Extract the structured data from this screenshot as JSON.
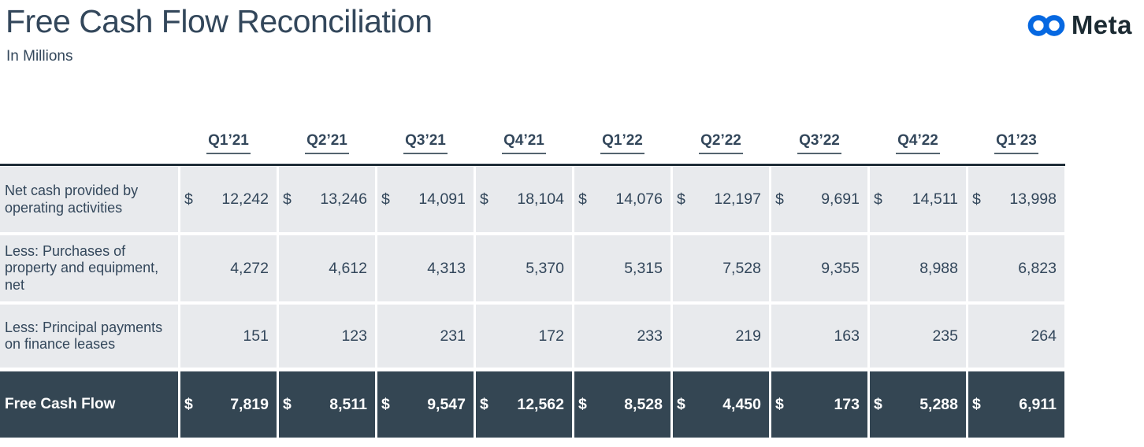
{
  "slide": {
    "title": "Free Cash Flow Reconciliation",
    "subtitle": "In Millions"
  },
  "logo": {
    "brand": "Meta",
    "icon": "meta-infinity-icon"
  },
  "colors": {
    "title_text": "#33475b",
    "table_text": "#33475b",
    "light_row_bg": "#e8eaed",
    "dark_row_bg": "#344653",
    "dark_row_text": "#ffffff",
    "top_rule": "#1f2d38",
    "header_underline": "#54646f",
    "logo_blue": "#0668E1",
    "logo_wordmark": "#1c2b33"
  },
  "chart_data": {
    "type": "table",
    "title": "Free Cash Flow Reconciliation",
    "units": "In Millions",
    "columns": [
      "Q1’21",
      "Q2’21",
      "Q3’21",
      "Q4’21",
      "Q1’22",
      "Q2’22",
      "Q3’22",
      "Q4’22",
      "Q1’23"
    ],
    "rows": [
      {
        "label": "Net cash provided by operating activities",
        "currency_prefix": "$",
        "style": "light",
        "values": [
          "12,242",
          "13,246",
          "14,091",
          "18,104",
          "14,076",
          "12,197",
          "9,691",
          "14,511",
          "13,998"
        ],
        "values_numeric": [
          12242,
          13246,
          14091,
          18104,
          14076,
          12197,
          9691,
          14511,
          13998
        ]
      },
      {
        "label": "Less: Purchases of property and equipment, net",
        "currency_prefix": "",
        "style": "light",
        "values": [
          "4,272",
          "4,612",
          "4,313",
          "5,370",
          "5,315",
          "7,528",
          "9,355",
          "8,988",
          "6,823"
        ],
        "values_numeric": [
          4272,
          4612,
          4313,
          5370,
          5315,
          7528,
          9355,
          8988,
          6823
        ]
      },
      {
        "label": "Less: Principal payments on finance leases",
        "currency_prefix": "",
        "style": "light",
        "values": [
          "151",
          "123",
          "231",
          "172",
          "233",
          "219",
          "163",
          "235",
          "264"
        ],
        "values_numeric": [
          151,
          123,
          231,
          172,
          233,
          219,
          163,
          235,
          264
        ]
      },
      {
        "label": "Free Cash Flow",
        "currency_prefix": "$",
        "style": "dark",
        "values": [
          "7,819",
          "8,511",
          "9,547",
          "12,562",
          "8,528",
          "4,450",
          "173",
          "5,288",
          "6,911"
        ],
        "values_numeric": [
          7819,
          8511,
          9547,
          12562,
          8528,
          4450,
          173,
          5288,
          6911
        ]
      }
    ]
  }
}
